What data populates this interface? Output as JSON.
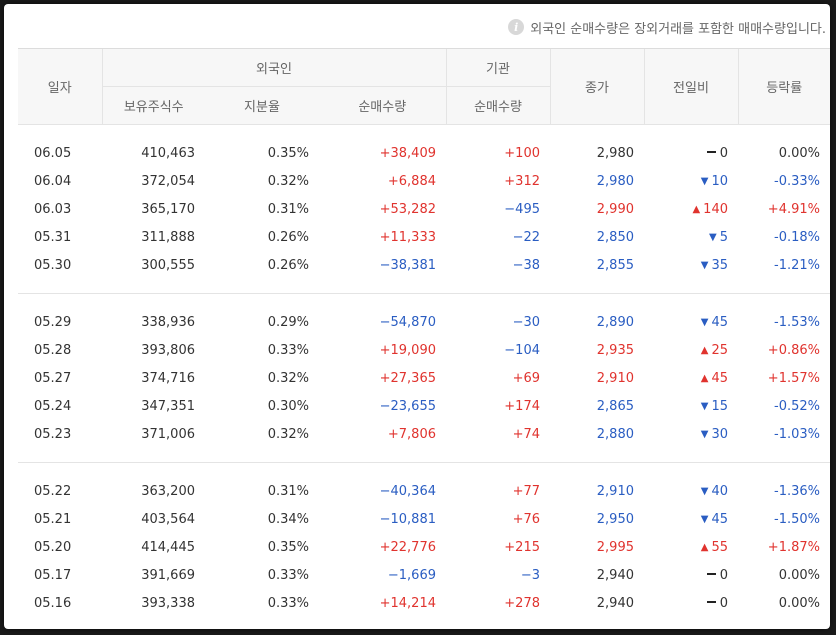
{
  "notice": {
    "icon": "info-icon",
    "text": "외국인 순매수량은 장외거래를 포함한 매매수량입니다."
  },
  "headers": {
    "date": "일자",
    "foreign": "외국인",
    "institution": "기관",
    "holdings": "보유주식수",
    "ratio": "지분율",
    "foreign_net": "순매수량",
    "inst_net": "순매수량",
    "close": "종가",
    "change": "전일비",
    "rate": "등락률"
  },
  "colors": {
    "up": "#e0332e",
    "down": "#2a5dc2"
  },
  "groups": [
    [
      {
        "date": "06.05",
        "holdings": "410,463",
        "ratio": "0.35%",
        "foreign_net": "+38,409",
        "inst_net": "+100",
        "close": "2,980",
        "change": "0",
        "rate": "0.00%",
        "dir": "flat"
      },
      {
        "date": "06.04",
        "holdings": "372,054",
        "ratio": "0.32%",
        "foreign_net": "+6,884",
        "inst_net": "+312",
        "close": "2,980",
        "change": "10",
        "rate": "-0.33%",
        "dir": "down"
      },
      {
        "date": "06.03",
        "holdings": "365,170",
        "ratio": "0.31%",
        "foreign_net": "+53,282",
        "inst_net": "−495",
        "close": "2,990",
        "change": "140",
        "rate": "+4.91%",
        "dir": "up"
      },
      {
        "date": "05.31",
        "holdings": "311,888",
        "ratio": "0.26%",
        "foreign_net": "+11,333",
        "inst_net": "−22",
        "close": "2,850",
        "change": "5",
        "rate": "-0.18%",
        "dir": "down"
      },
      {
        "date": "05.30",
        "holdings": "300,555",
        "ratio": "0.26%",
        "foreign_net": "−38,381",
        "inst_net": "−38",
        "close": "2,855",
        "change": "35",
        "rate": "-1.21%",
        "dir": "down"
      }
    ],
    [
      {
        "date": "05.29",
        "holdings": "338,936",
        "ratio": "0.29%",
        "foreign_net": "−54,870",
        "inst_net": "−30",
        "close": "2,890",
        "change": "45",
        "rate": "-1.53%",
        "dir": "down"
      },
      {
        "date": "05.28",
        "holdings": "393,806",
        "ratio": "0.33%",
        "foreign_net": "+19,090",
        "inst_net": "−104",
        "close": "2,935",
        "change": "25",
        "rate": "+0.86%",
        "dir": "up"
      },
      {
        "date": "05.27",
        "holdings": "374,716",
        "ratio": "0.32%",
        "foreign_net": "+27,365",
        "inst_net": "+69",
        "close": "2,910",
        "change": "45",
        "rate": "+1.57%",
        "dir": "up"
      },
      {
        "date": "05.24",
        "holdings": "347,351",
        "ratio": "0.30%",
        "foreign_net": "−23,655",
        "inst_net": "+174",
        "close": "2,865",
        "change": "15",
        "rate": "-0.52%",
        "dir": "down"
      },
      {
        "date": "05.23",
        "holdings": "371,006",
        "ratio": "0.32%",
        "foreign_net": "+7,806",
        "inst_net": "+74",
        "close": "2,880",
        "change": "30",
        "rate": "-1.03%",
        "dir": "down"
      }
    ],
    [
      {
        "date": "05.22",
        "holdings": "363,200",
        "ratio": "0.31%",
        "foreign_net": "−40,364",
        "inst_net": "+77",
        "close": "2,910",
        "change": "40",
        "rate": "-1.36%",
        "dir": "down"
      },
      {
        "date": "05.21",
        "holdings": "403,564",
        "ratio": "0.34%",
        "foreign_net": "−10,881",
        "inst_net": "+76",
        "close": "2,950",
        "change": "45",
        "rate": "-1.50%",
        "dir": "down"
      },
      {
        "date": "05.20",
        "holdings": "414,445",
        "ratio": "0.35%",
        "foreign_net": "+22,776",
        "inst_net": "+215",
        "close": "2,995",
        "change": "55",
        "rate": "+1.87%",
        "dir": "up"
      },
      {
        "date": "05.17",
        "holdings": "391,669",
        "ratio": "0.33%",
        "foreign_net": "−1,669",
        "inst_net": "−3",
        "close": "2,940",
        "change": "0",
        "rate": "0.00%",
        "dir": "flat"
      },
      {
        "date": "05.16",
        "holdings": "393,338",
        "ratio": "0.33%",
        "foreign_net": "+14,214",
        "inst_net": "+278",
        "close": "2,940",
        "change": "0",
        "rate": "0.00%",
        "dir": "flat"
      }
    ]
  ]
}
